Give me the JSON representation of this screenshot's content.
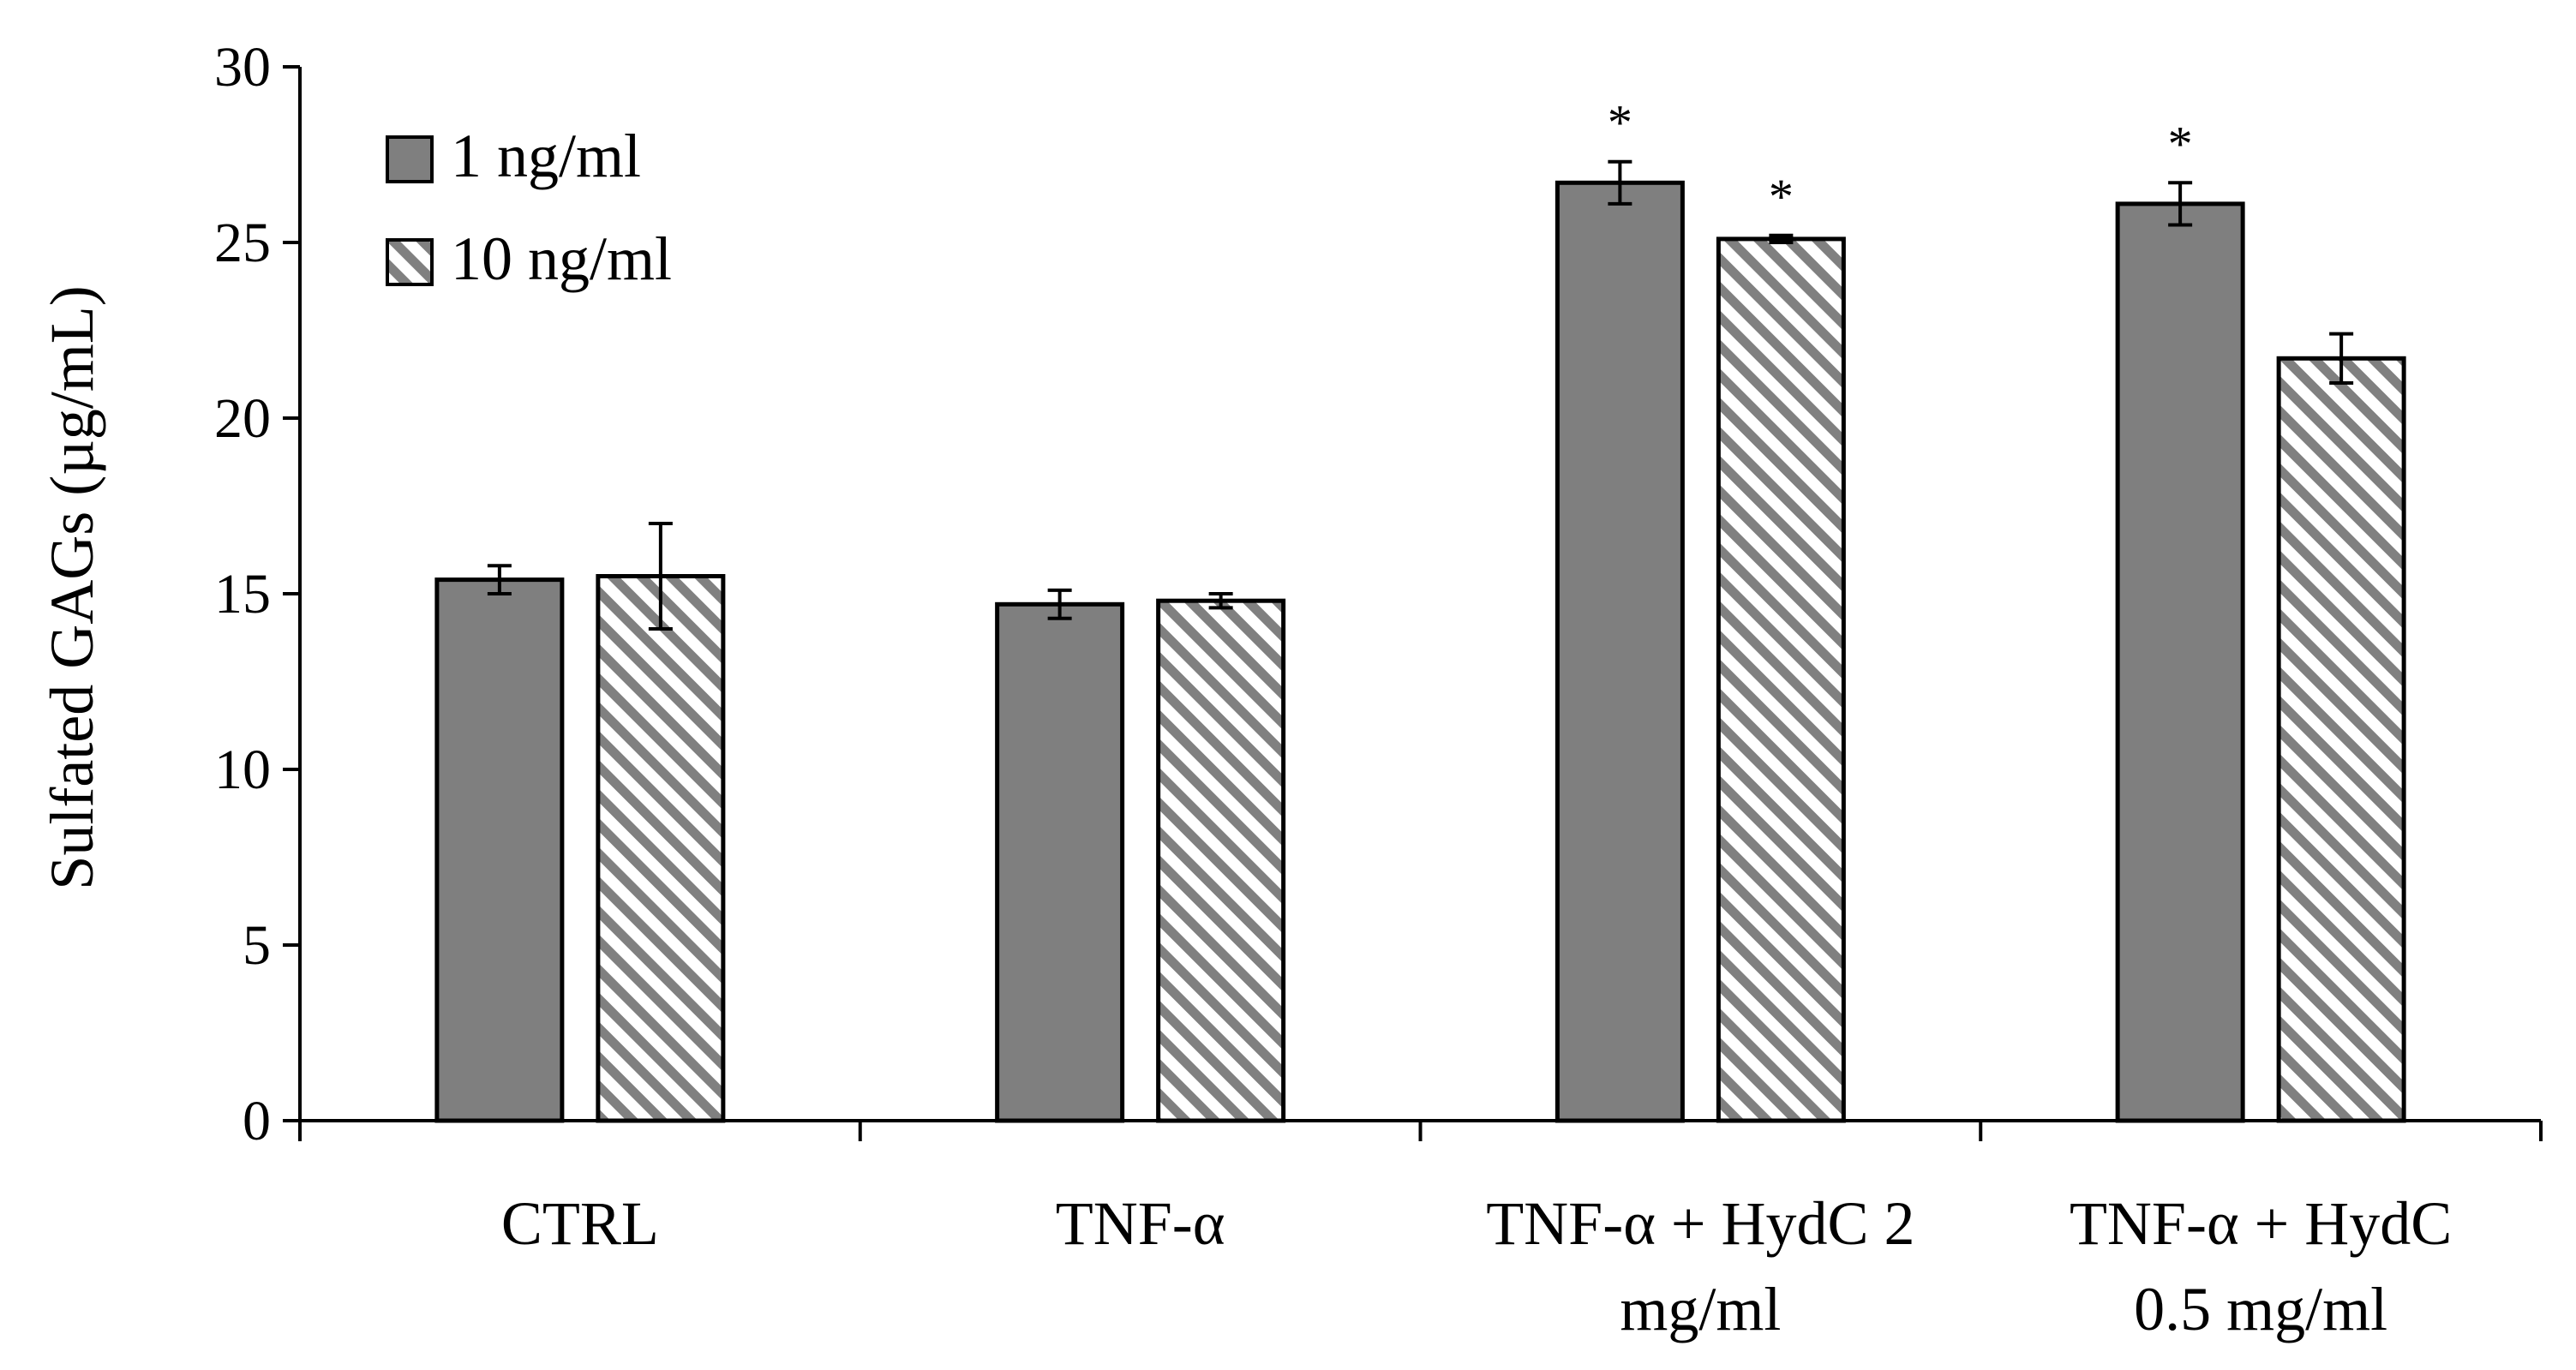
{
  "chart_data": {
    "type": "bar",
    "title": "",
    "xlabel": "",
    "ylabel": "Sulfated GAGs (µg/mL)",
    "ylim": [
      0,
      30
    ],
    "yticks": [
      0,
      5,
      10,
      15,
      20,
      25,
      30
    ],
    "grid": false,
    "legend_position": "top-left",
    "categories": [
      [
        "CTRL"
      ],
      [
        "TNF-α"
      ],
      [
        "TNF-α + HydC 2",
        "mg/ml"
      ],
      [
        "TNF-α + HydC",
        "0.5 mg/ml"
      ]
    ],
    "series": [
      {
        "name": "1 ng/ml",
        "pattern": "solid",
        "color": "#7f7f7f",
        "values": [
          15.4,
          14.7,
          26.7,
          26.1
        ],
        "errors": [
          0.4,
          0.4,
          0.6,
          0.6
        ],
        "significance": [
          "",
          "",
          "*",
          "*"
        ]
      },
      {
        "name": "10 ng/ml",
        "pattern": "diagonal-stripes",
        "color": "#7f7f7f",
        "values": [
          15.5,
          14.8,
          25.1,
          21.7
        ],
        "errors": [
          1.5,
          0.2,
          0.1,
          0.7
        ],
        "significance": [
          "",
          "",
          "*",
          ""
        ]
      }
    ]
  }
}
